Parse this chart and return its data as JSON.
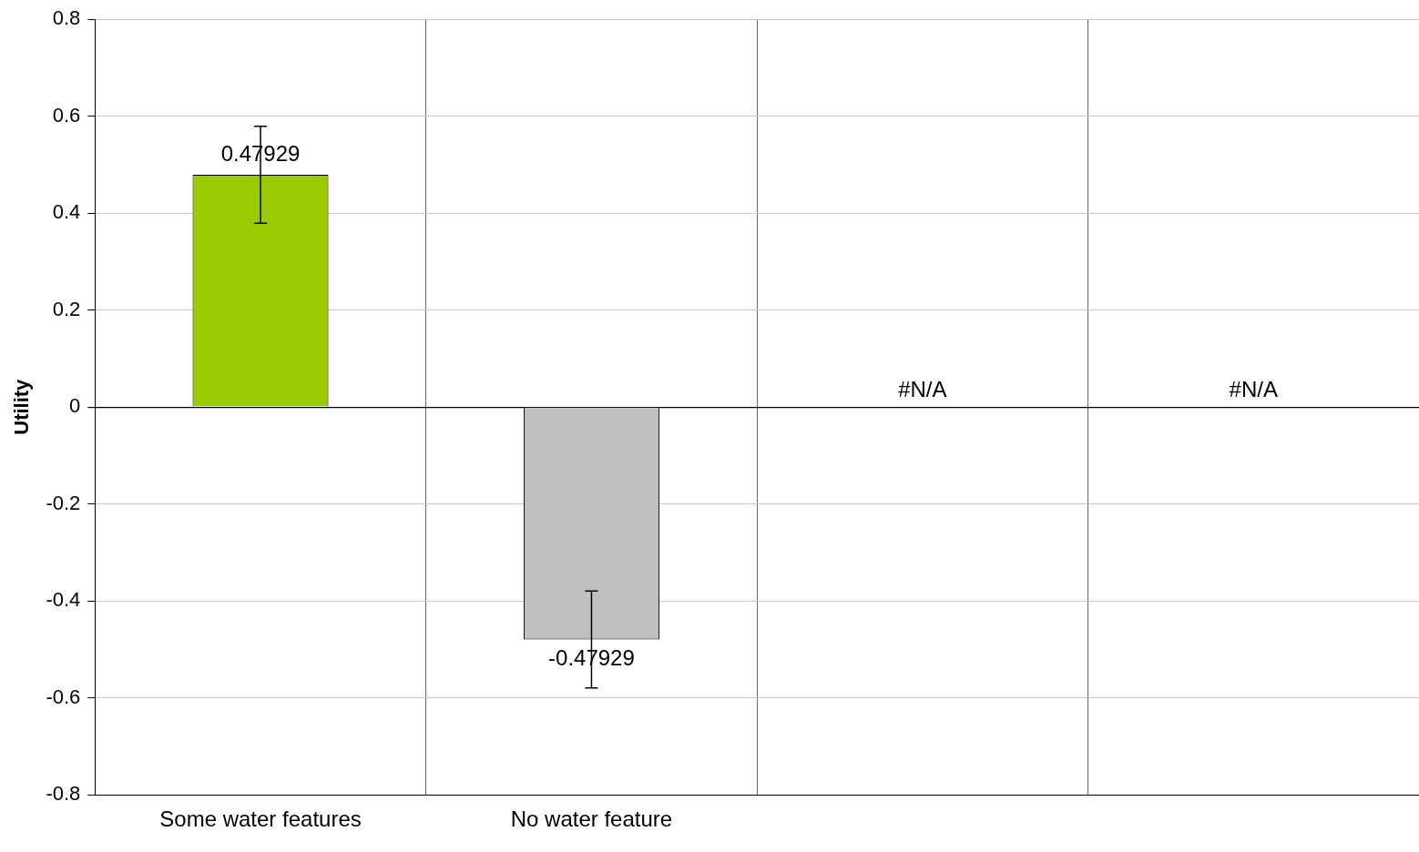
{
  "chart_data": {
    "type": "bar",
    "ylabel": "Utility",
    "categories": [
      "Some water features",
      "No water feature",
      null,
      null
    ],
    "values": [
      0.47929,
      -0.47929,
      null,
      null
    ],
    "colors": [
      "#99cc00",
      "#c0c0c0",
      "#99cc00",
      "#c0c0c0"
    ],
    "errors": [
      0.1,
      0.1,
      null,
      null
    ],
    "value_labels": [
      "0.47929",
      "-0.47929",
      "#N/A",
      "#N/A"
    ],
    "ylim": [
      -0.8,
      0.8
    ],
    "yticks": [
      -0.8,
      -0.6,
      -0.4,
      -0.2,
      0,
      0.2,
      0.4,
      0.6,
      0.8
    ],
    "grid": true,
    "legend": false
  }
}
